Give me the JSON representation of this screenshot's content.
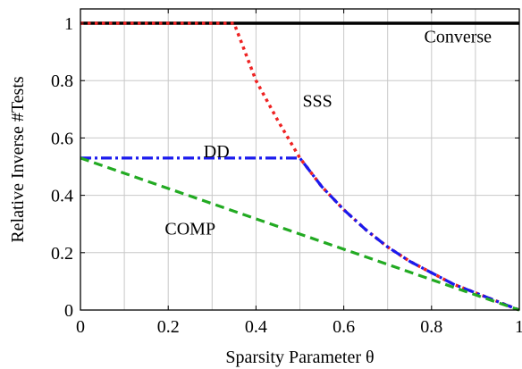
{
  "chart_data": {
    "type": "line",
    "xlabel": "Sparsity Parameter θ",
    "ylabel": "Relative Inverse #Tests",
    "xlim": [
      0,
      1
    ],
    "ylim": [
      0,
      1.05
    ],
    "xticks": [
      0,
      0.2,
      0.4,
      0.6,
      0.8,
      1
    ],
    "yticks": [
      0,
      0.2,
      0.4,
      0.6,
      0.8,
      1
    ],
    "xtick_labels": [
      "0",
      "0.2",
      "0.4",
      "0.6",
      "0.8",
      "1"
    ],
    "ytick_labels": [
      "0",
      "0.2",
      "0.4",
      "0.6",
      "0.8",
      "1"
    ],
    "grid": true,
    "legend": "inline labels",
    "series": [
      {
        "name": "Converse",
        "color": "#000000",
        "style": "solid",
        "x": [
          0,
          1
        ],
        "y": [
          1,
          1
        ]
      },
      {
        "name": "SSS",
        "color": "#ee2222",
        "style": "dotted",
        "x": [
          0,
          0.35,
          0.4,
          0.45,
          0.5,
          0.55,
          0.6,
          0.65,
          0.7,
          0.75,
          0.8,
          0.85,
          0.9,
          0.95,
          1
        ],
        "y": [
          1,
          1,
          0.8,
          0.66,
          0.53,
          0.43,
          0.35,
          0.28,
          0.22,
          0.17,
          0.13,
          0.09,
          0.06,
          0.03,
          0
        ]
      },
      {
        "name": "DD",
        "color": "#1a1aee",
        "style": "dashdot",
        "x": [
          0,
          0.5,
          0.55,
          0.6,
          0.65,
          0.7,
          0.75,
          0.8,
          0.85,
          0.9,
          0.95,
          1
        ],
        "y": [
          0.53,
          0.53,
          0.43,
          0.35,
          0.28,
          0.22,
          0.17,
          0.13,
          0.09,
          0.06,
          0.03,
          0
        ]
      },
      {
        "name": "COMP",
        "color": "#22aa22",
        "style": "dashed",
        "x": [
          0,
          1
        ],
        "y": [
          0.53,
          0
        ]
      }
    ],
    "labels": [
      {
        "text": "Converse",
        "x": 0.86,
        "y": 0.955
      },
      {
        "text": "SSS",
        "x": 0.54,
        "y": 0.73
      },
      {
        "text": "DD",
        "x": 0.31,
        "y": 0.555
      },
      {
        "text": "COMP",
        "x": 0.25,
        "y": 0.285
      }
    ]
  }
}
